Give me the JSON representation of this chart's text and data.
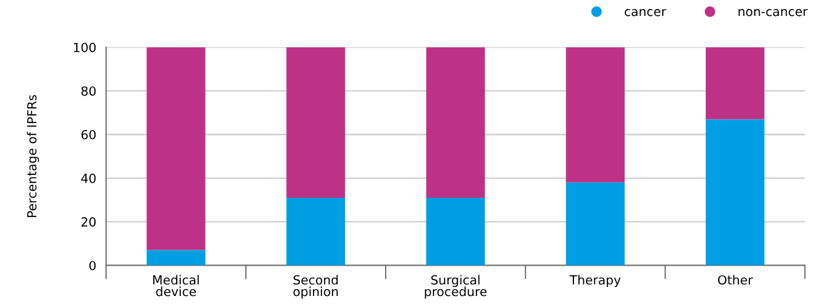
{
  "chart_data": {
    "type": "bar",
    "stacked": true,
    "ylabel": "Percentage of IPFRs",
    "categories": [
      "Medical\ndevice",
      "Second\nopinion",
      "Surgical\nprocedure",
      "Therapy",
      "Other"
    ],
    "series": [
      {
        "name": "cancer",
        "color": "#009fe3",
        "values": [
          7,
          31,
          31,
          38,
          67
        ]
      },
      {
        "name": "non-cancer",
        "color": "#bd3287",
        "values": [
          93,
          69,
          69,
          62,
          33
        ]
      }
    ],
    "ylim": [
      0,
      100
    ],
    "yticks": [
      0,
      20,
      40,
      60,
      80,
      100
    ],
    "grid": "y",
    "legend": "top right"
  }
}
